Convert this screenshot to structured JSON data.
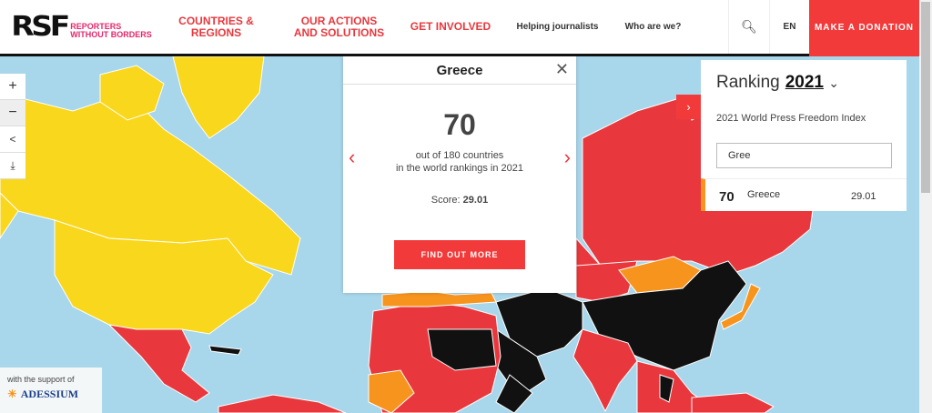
{
  "header": {
    "logo_mark": "RSF",
    "logo_text": [
      "REPORTERS",
      "WITHOUT BORDERS"
    ],
    "nav": [
      "COUNTRIES & REGIONS",
      "OUR ACTIONS AND SOLUTIONS",
      "GET INVOLVED",
      "Helping journalists",
      "Who are we?"
    ],
    "language": "EN",
    "donate": "MAKE A DONATION"
  },
  "colors": {
    "accent": "#f33a3a",
    "good": "#f9d71c",
    "problematic": "#f7941d",
    "difficult": "#e8383d",
    "very_serious": "#111111",
    "sea": "#a8d6ea"
  },
  "popup": {
    "country": "Greece",
    "rank": "70",
    "line1": "out of 180 countries",
    "line2": "in the world rankings in 2021",
    "score_label": "Score:",
    "score": "29.01",
    "button": "FIND OUT MORE"
  },
  "ranking": {
    "label": "Ranking",
    "year": "2021",
    "subtitle": "2021 World Press Freedom Index",
    "search_value": "Gree",
    "results": [
      {
        "rank": "70",
        "country": "Greece",
        "score": "29.01"
      }
    ]
  },
  "support": {
    "text": "with the support of",
    "logo": "ADESSIUM FOUNDATION"
  }
}
